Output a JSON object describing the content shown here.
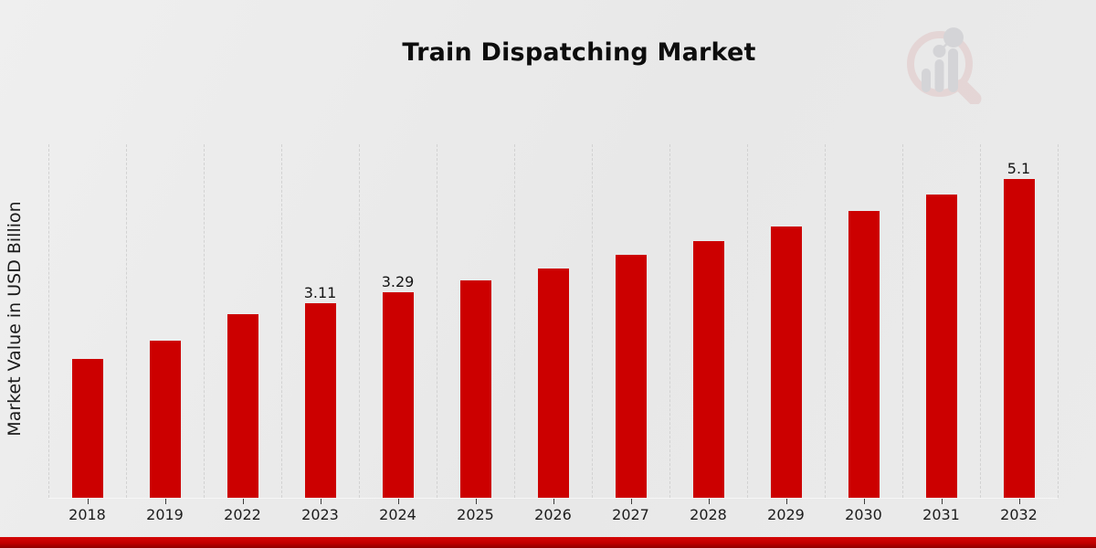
{
  "page": {
    "background_color": "#e9e9e9",
    "footer_accent_color": "#c00000"
  },
  "branding": {
    "watermark_icon": "market-research-future-logo",
    "watermark_ring_color": "#e0c6c6",
    "watermark_bars_color": "#c4c4c9"
  },
  "chart_data": {
    "type": "bar",
    "title": "Train Dispatching Market",
    "xlabel": "",
    "ylabel": "Market Value in USD Billion",
    "categories": [
      "2018",
      "2019",
      "2022",
      "2023",
      "2024",
      "2025",
      "2026",
      "2027",
      "2028",
      "2029",
      "2030",
      "2031",
      "2032"
    ],
    "values": [
      2.22,
      2.51,
      2.94,
      3.11,
      3.29,
      3.47,
      3.67,
      3.88,
      4.1,
      4.34,
      4.58,
      4.85,
      5.1
    ],
    "bar_labels": [
      "",
      "",
      "",
      "3.11",
      "3.29",
      "",
      "",
      "",
      "",
      "",
      "",
      "",
      "5.1"
    ],
    "bar_color": "#cc0000",
    "ylim": [
      0,
      5.65
    ],
    "grid": "vertical-dashed",
    "legend": false
  }
}
